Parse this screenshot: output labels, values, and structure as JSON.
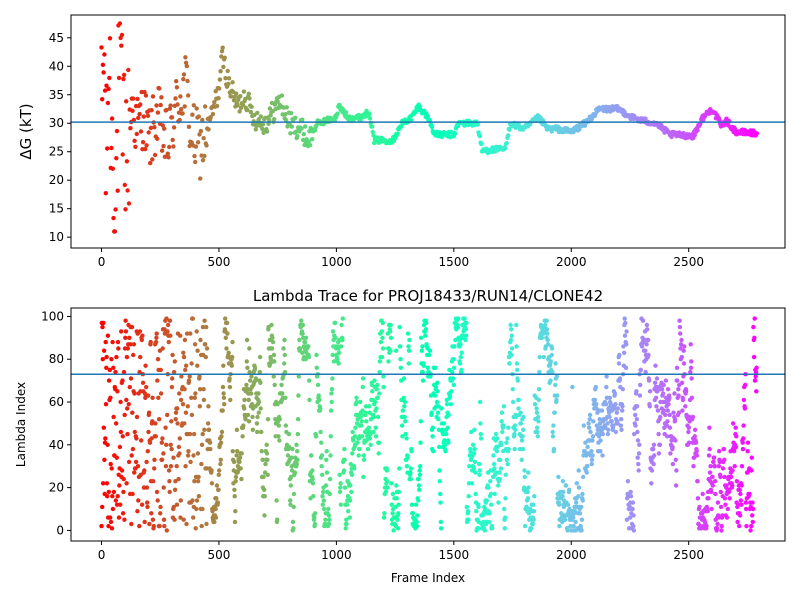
{
  "chart_data": [
    {
      "type": "scatter",
      "title": "",
      "xlabel": "",
      "ylabel": "ΔG (kT)",
      "xlim": [
        -130,
        2910
      ],
      "ylim": [
        8.1,
        49.0
      ],
      "xticks": [
        0,
        500,
        1000,
        1500,
        2000,
        2500
      ],
      "yticks": [
        10,
        15,
        20,
        25,
        30,
        35,
        40,
        45
      ],
      "hline": 30.2,
      "hline_color": "#1f77b4",
      "colormap": "rainbow_r",
      "grid": false,
      "legend": "none",
      "trace_profile": [
        [
          0,
          30
        ],
        [
          10,
          44
        ],
        [
          20,
          20
        ],
        [
          30,
          42
        ],
        [
          45,
          27
        ],
        [
          60,
          15
        ],
        [
          75,
          38
        ],
        [
          90,
          30
        ],
        [
          110,
          25
        ],
        [
          130,
          34
        ],
        [
          150,
          29
        ],
        [
          180,
          32
        ],
        [
          200,
          27
        ],
        [
          240,
          31
        ],
        [
          280,
          26
        ],
        [
          320,
          33
        ],
        [
          360,
          37
        ],
        [
          380,
          28
        ],
        [
          420,
          26
        ],
        [
          460,
          30
        ],
        [
          500,
          36
        ],
        [
          515,
          42
        ],
        [
          540,
          37
        ],
        [
          580,
          33
        ],
        [
          610,
          35
        ],
        [
          650,
          31
        ],
        [
          700,
          30
        ],
        [
          760,
          34
        ],
        [
          800,
          30
        ],
        [
          850,
          29
        ],
        [
          880,
          27
        ],
        [
          920,
          30
        ],
        [
          1000,
          31
        ],
        [
          1010,
          33
        ],
        [
          1050,
          31
        ],
        [
          1100,
          31
        ],
        [
          1140,
          32
        ],
        [
          1160,
          27
        ],
        [
          1240,
          27
        ],
        [
          1280,
          30
        ],
        [
          1320,
          31
        ],
        [
          1350,
          33
        ],
        [
          1390,
          31
        ],
        [
          1420,
          28
        ],
        [
          1500,
          28
        ],
        [
          1520,
          30
        ],
        [
          1600,
          30
        ],
        [
          1620,
          25.2
        ],
        [
          1720,
          25.5
        ],
        [
          1740,
          30
        ],
        [
          1800,
          29
        ],
        [
          1860,
          31
        ],
        [
          1900,
          29
        ],
        [
          1940,
          29
        ],
        [
          2000,
          28.5
        ],
        [
          2060,
          30
        ],
        [
          2120,
          32.5
        ],
        [
          2200,
          32.5
        ],
        [
          2260,
          31
        ],
        [
          2300,
          30.5
        ],
        [
          2360,
          30
        ],
        [
          2420,
          28
        ],
        [
          2520,
          27.8
        ],
        [
          2560,
          31
        ],
        [
          2600,
          32.5
        ],
        [
          2640,
          29.5
        ],
        [
          2660,
          30.5
        ],
        [
          2700,
          28.5
        ],
        [
          2790,
          28.2
        ]
      ]
    },
    {
      "type": "scatter",
      "title": "Lambda Trace for PROJ18433/RUN14/CLONE42",
      "xlabel": "Frame Index",
      "ylabel": "Lambda Index",
      "xlim": [
        -130,
        2910
      ],
      "ylim": [
        -4.95,
        103.95
      ],
      "xticks": [
        0,
        500,
        1000,
        1500,
        2000,
        2500
      ],
      "yticks": [
        0,
        20,
        40,
        60,
        80,
        100
      ],
      "hline": 73,
      "hline_color": "#1f77b4",
      "colormap": "rainbow_r",
      "grid": false,
      "legend": "none",
      "lambda_min": 0,
      "lambda_max": 99,
      "frame_max": 2790
    }
  ]
}
